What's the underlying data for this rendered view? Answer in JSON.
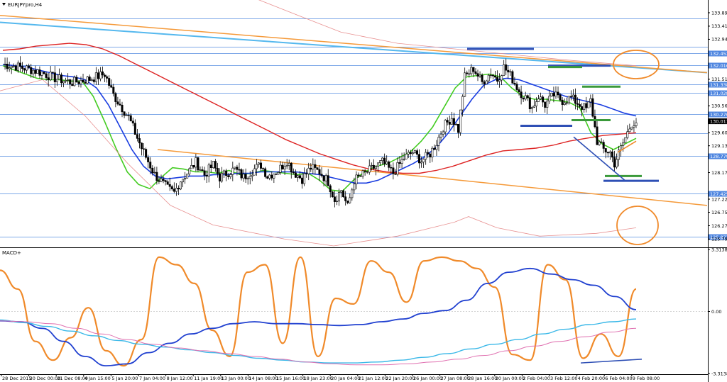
{
  "window": {
    "symbol_label": "EURJPYpro,H4",
    "macd_label": "MACD+"
  },
  "chart_data": [
    {
      "type": "candlestick",
      "panel": "price",
      "symbol": "EURJPYpro",
      "timeframe": "H4",
      "ylim": [
        125.55,
        134.35
      ],
      "y_ticks": [
        "133.894",
        "133.414",
        "132.944",
        "131.514",
        "130.564",
        "129.604",
        "129.134",
        "128.174",
        "127.224",
        "126.754",
        "126.274",
        "125.794"
      ],
      "horizontal_levels": [
        {
          "value": 133.69,
          "label": ""
        },
        {
          "value": 132.683,
          "label": ""
        },
        {
          "value": 132.453,
          "label": "132.453"
        },
        {
          "value": 132.016,
          "label": "132.016"
        },
        {
          "value": 131.338,
          "label": "131.338"
        },
        {
          "value": 131.028,
          "label": "131.028"
        },
        {
          "value": 130.27,
          "label": "130.270"
        },
        {
          "value": 129.58,
          "label": ""
        },
        {
          "value": 128.779,
          "label": "128.779"
        },
        {
          "value": 127.425,
          "label": "127.425"
        },
        {
          "value": 125.877,
          "label": "125.877"
        }
      ],
      "current_price": "130.011",
      "close_path": [
        [
          0,
          132.05
        ],
        [
          6,
          131.98
        ],
        [
          12,
          131.88
        ],
        [
          18,
          131.75
        ],
        [
          24,
          131.55
        ],
        [
          32,
          131.4
        ],
        [
          40,
          131.52
        ],
        [
          47,
          131.7
        ],
        [
          51,
          130.95
        ],
        [
          58,
          130.15
        ],
        [
          64,
          129.05
        ],
        [
          70,
          128.1
        ],
        [
          76,
          127.6
        ],
        [
          79,
          127.45
        ],
        [
          82,
          127.9
        ],
        [
          86,
          128.25
        ],
        [
          89,
          128.55
        ],
        [
          93,
          128.1
        ],
        [
          97,
          128.45
        ],
        [
          100,
          128.0
        ],
        [
          103,
          128.15
        ],
        [
          107,
          128.3
        ],
        [
          111,
          128.0
        ],
        [
          115,
          128.25
        ],
        [
          119,
          128.45
        ],
        [
          122,
          128.05
        ],
        [
          127,
          128.25
        ],
        [
          131,
          128.6
        ],
        [
          134,
          128.2
        ],
        [
          138,
          127.95
        ],
        [
          142,
          128.35
        ],
        [
          146,
          128.2
        ],
        [
          150,
          127.85
        ],
        [
          153,
          127.2
        ],
        [
          156,
          127.55
        ],
        [
          159,
          126.95
        ],
        [
          162,
          127.9
        ],
        [
          166,
          128.1
        ],
        [
          170,
          128.3
        ],
        [
          175,
          128.55
        ],
        [
          180,
          128.15
        ],
        [
          185,
          128.7
        ],
        [
          189,
          128.9
        ],
        [
          193,
          128.6
        ],
        [
          197,
          128.85
        ],
        [
          200,
          129.25
        ],
        [
          203,
          129.8
        ],
        [
          207,
          130.15
        ],
        [
          210,
          129.7
        ],
        [
          213,
          131.6
        ],
        [
          217,
          131.9
        ],
        [
          221,
          131.4
        ],
        [
          225,
          131.75
        ],
        [
          228,
          131.5
        ],
        [
          231,
          131.95
        ],
        [
          234,
          131.65
        ],
        [
          238,
          131.1
        ],
        [
          241,
          130.85
        ],
        [
          244,
          130.5
        ],
        [
          247,
          130.9
        ],
        [
          250,
          130.6
        ],
        [
          254,
          130.95
        ],
        [
          258,
          130.75
        ],
        [
          262,
          130.85
        ],
        [
          266,
          130.6
        ],
        [
          269,
          130.45
        ],
        [
          271,
          130.75
        ],
        [
          274,
          129.3
        ],
        [
          277,
          129.0
        ],
        [
          280,
          128.9
        ],
        [
          282,
          128.5
        ],
        [
          285,
          129.05
        ],
        [
          288,
          129.6
        ],
        [
          290,
          129.95
        ],
        [
          292,
          130.0
        ]
      ],
      "time_labels": [
        "28 Dec 2015",
        "30 Dec 00:00",
        "31 Dec 08:00",
        "4 Jan 15:00",
        "5 Jan 20:00",
        "7 Jan 04:00",
        "8 Jan 12:00",
        "11 Jan 19:00",
        "13 Jan 00:00",
        "14 Jan 08:00",
        "15 Jan 16:00",
        "18 Jan 23:00",
        "20 Jan 04:00",
        "21 Jan 12:00",
        "22 Jan 20:00",
        "26 Jan 00:00",
        "27 Jan 08:00",
        "28 Jan 16:00",
        "30 Jan 00:00",
        "2 Feb 04:00",
        "3 Feb 12:00",
        "4 Feb 20:00",
        "6 Feb 04:00",
        "9 Feb 08:00"
      ],
      "moving_averages": [
        {
          "color": "#44cc22",
          "values": [
            132.0,
            131.85,
            131.7,
            131.55,
            131.5,
            131.5,
            131.45,
            131.45,
            130.9,
            130.0,
            129.05,
            128.2,
            127.75,
            127.6,
            128.0,
            128.35,
            128.3,
            128.2,
            128.2,
            128.15,
            128.25,
            128.1,
            128.15,
            128.25,
            128.2,
            128.15,
            128.1,
            128.15,
            127.9,
            127.55,
            127.5,
            127.9,
            128.2,
            128.4,
            128.5,
            128.7,
            128.9,
            129.3,
            129.8,
            130.5,
            131.2,
            131.6,
            131.65,
            131.7,
            131.6,
            131.2,
            130.9,
            130.8,
            130.8,
            130.75,
            130.7,
            130.5,
            129.6,
            129.2,
            129.0,
            129.2,
            129.4
          ]
        },
        {
          "color": "#1a3de0",
          "values": [
            132.05,
            132.0,
            131.95,
            131.85,
            131.75,
            131.65,
            131.6,
            131.5,
            131.2,
            130.6,
            129.8,
            129.0,
            128.4,
            128.05,
            127.95,
            128.0,
            128.05,
            128.05,
            128.1,
            128.1,
            128.15,
            128.15,
            128.2,
            128.2,
            128.2,
            128.2,
            128.15,
            128.1,
            128.0,
            127.9,
            127.8,
            127.8,
            127.9,
            128.1,
            128.3,
            128.5,
            128.75,
            129.1,
            129.6,
            130.2,
            130.8,
            131.3,
            131.5,
            131.55,
            131.5,
            131.35,
            131.2,
            131.05,
            130.9,
            130.8,
            130.7,
            130.6,
            130.45,
            130.3,
            130.2
          ]
        },
        {
          "color": "#dd2222",
          "values": [
            132.55,
            132.6,
            132.7,
            132.75,
            132.8,
            132.75,
            132.6,
            132.35,
            132.05,
            131.75,
            131.45,
            131.15,
            130.85,
            130.55,
            130.25,
            129.95,
            129.65,
            129.35,
            129.1,
            128.85,
            128.65,
            128.45,
            128.3,
            128.2,
            128.15,
            128.15,
            128.25,
            128.4,
            128.6,
            128.8,
            128.95,
            129.0,
            129.05,
            129.15,
            129.3,
            129.4,
            129.5,
            129.55,
            129.6
          ]
        }
      ],
      "trendlines": [
        {
          "label": "",
          "color": "#55b8ee"
        },
        {
          "label": "",
          "color": "#f59a3a"
        },
        {
          "label": "",
          "color": "#f59a3a"
        }
      ]
    },
    {
      "type": "line",
      "panel": "indicator",
      "title": "MACD+",
      "ylim": [
        -3.3138,
        3.3138
      ],
      "y_ticks": [
        "3.3138",
        "0.00",
        "-3.3138"
      ],
      "series": [
        {
          "color": "#f08a2a",
          "values": [
            2.2,
            1.2,
            -1.6,
            -2.6,
            -1.4,
            0.2,
            -2.1,
            -2.9,
            -1.5,
            2.9,
            2.5,
            1.5,
            -1.0,
            -2.4,
            2.1,
            2.5,
            -1.7,
            2.9,
            -2.4,
            0.7,
            0.4,
            2.7,
            2.1,
            0.5,
            2.7,
            2.9,
            2.7,
            2.3,
            1.3,
            -2.3,
            -2.6,
            2.5,
            1.7,
            -2.5,
            -1.2,
            -2.4,
            1.2
          ]
        },
        {
          "color": "#2040d0",
          "values": [
            -0.5,
            -0.55,
            -0.9,
            -1.6,
            -2.4,
            -2.9,
            -2.8,
            -2.2,
            -1.7,
            -1.2,
            -0.9,
            -0.65,
            -0.55,
            -0.65,
            -0.65,
            -0.7,
            -0.75,
            -0.7,
            -0.55,
            -0.4,
            -0.1,
            0.05,
            0.6,
            1.5,
            2.1,
            2.3,
            2.0,
            1.7,
            1.4,
            0.8,
            0.1
          ]
        },
        {
          "color": "#3ab8e8",
          "values": [
            -0.45,
            -0.6,
            -0.8,
            -1.05,
            -1.3,
            -1.55,
            -1.75,
            -1.9,
            -2.05,
            -2.2,
            -2.35,
            -2.5,
            -2.6,
            -2.7,
            -2.75,
            -2.75,
            -2.7,
            -2.6,
            -2.45,
            -2.25,
            -2.0,
            -1.75,
            -1.5,
            -1.2,
            -0.95,
            -0.7,
            -0.55,
            -0.4
          ]
        },
        {
          "color": "#e070b0",
          "values": [
            -0.5,
            -0.55,
            -0.65,
            -0.9,
            -1.2,
            -1.5,
            -1.75,
            -1.95,
            -2.1,
            -2.25,
            -2.4,
            -2.55,
            -2.7,
            -2.8,
            -2.85,
            -2.85,
            -2.8,
            -2.7,
            -2.55,
            -2.35,
            -2.1,
            -1.85,
            -1.6,
            -1.35,
            -1.1,
            -0.9
          ]
        }
      ]
    }
  ]
}
